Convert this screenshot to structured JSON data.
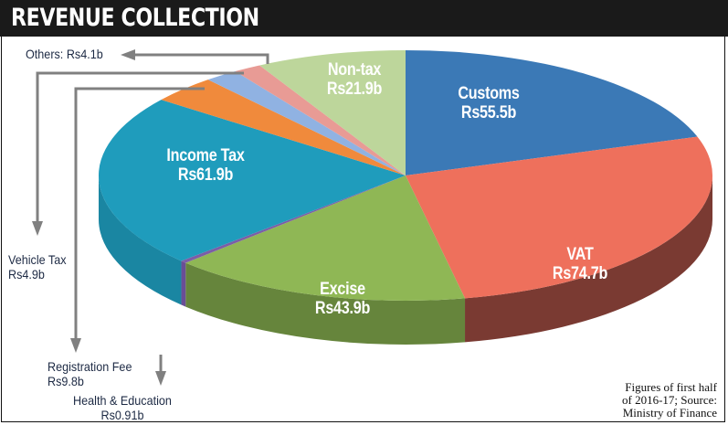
{
  "chart_data": {
    "type": "pie",
    "title": "REVENUE COLLECTION",
    "unit": "Rs billion",
    "slices": [
      {
        "name": "Customs",
        "label": "Rs55.5b",
        "value": 55.5,
        "color": "#3b79b6",
        "side": "#2a5a8a"
      },
      {
        "name": "VAT",
        "label": "Rs74.7b",
        "value": 74.7,
        "color": "#ee705c",
        "side": "#7a3a32"
      },
      {
        "name": "Excise",
        "label": "Rs43.9b",
        "value": 43.9,
        "color": "#8fb755",
        "side": "#66853c"
      },
      {
        "name": "Health & Education",
        "label": "Rs0.91b",
        "value": 0.91,
        "color": "#7b5ea7",
        "side": "#6a4e96"
      },
      {
        "name": "Income Tax",
        "label": "Rs61.9b",
        "value": 61.9,
        "color": "#1f9cbc",
        "side": "#1a86a2"
      },
      {
        "name": "Registration Fee",
        "label": "Rs9.8b",
        "value": 9.8,
        "color": "#f08a3c",
        "side": "#c0702f"
      },
      {
        "name": "Vehicle Tax",
        "label": "Rs4.9b",
        "value": 4.9,
        "color": "#90b2e2",
        "side": "#7090c0"
      },
      {
        "name": "Others",
        "label": "Rs4.1b",
        "value": 4.1,
        "color": "#e89b95",
        "side": "#c07a75"
      },
      {
        "name": "Non-tax",
        "label": "Rs21.9b",
        "value": 21.9,
        "color": "#bdd69b",
        "side": "#9bb47b"
      }
    ],
    "others_label": "Others: Rs4.1b",
    "note": [
      "Figures of first half",
      "of 2016-17; Source:",
      "Ministry of Finance"
    ]
  }
}
